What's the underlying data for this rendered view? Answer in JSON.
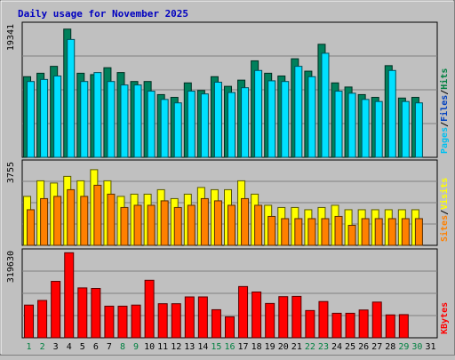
{
  "chart_data": {
    "type": "bar",
    "title": "Daily usage for November 2025",
    "categories": [
      "1",
      "2",
      "3",
      "4",
      "5",
      "6",
      "7",
      "8",
      "9",
      "10",
      "11",
      "12",
      "13",
      "14",
      "15",
      "16",
      "17",
      "18",
      "19",
      "20",
      "21",
      "22",
      "23",
      "24",
      "25",
      "26",
      "27",
      "28",
      "29",
      "30",
      "31"
    ],
    "weekend_days": [
      "1",
      "2",
      "8",
      "9",
      "15",
      "16",
      "22",
      "23",
      "29",
      "30"
    ],
    "panels": [
      {
        "id": "top",
        "max_label": "19341",
        "ymax": 19341,
        "side_labels": [
          {
            "text": "Pages",
            "color": "#00c0f0"
          },
          {
            "text": "Files",
            "color": "#0040c0"
          },
          {
            "text": "Hits",
            "color": "#008040"
          }
        ],
        "series": [
          {
            "name": "Hits",
            "color": "#00805c",
            "values": [
              11700,
              12200,
              13200,
              18600,
              12200,
              12000,
              13000,
              12300,
              11000,
              11000,
              9100,
              8700,
              10800,
              9700,
              11700,
              10300,
              11200,
              14000,
              12200,
              11800,
              14300,
              12500,
              16400,
              10800,
              10200,
              9100,
              8700,
              13300,
              8600,
              8700,
              null
            ]
          },
          {
            "name": "Files",
            "color": "#0000ff",
            "values": [
              null,
              null,
              null,
              null,
              null,
              null,
              null,
              null,
              null,
              null,
              null,
              null,
              null,
              null,
              null,
              null,
              null,
              null,
              null,
              null,
              null,
              null,
              null,
              null,
              null,
              null,
              null,
              null,
              null,
              null,
              null
            ]
          },
          {
            "name": "Pages",
            "color": "#00e0ff",
            "values": [
              11000,
              11300,
              11800,
              17100,
              11000,
              12300,
              11000,
              10500,
              10500,
              9600,
              8400,
              7900,
              9600,
              9200,
              10900,
              9400,
              10100,
              12600,
              11100,
              11000,
              13200,
              11700,
              15100,
              9600,
              9300,
              8400,
              8100,
              12600,
              8100,
              7900,
              null
            ]
          }
        ]
      },
      {
        "id": "middle",
        "max_label": "3755",
        "ymax": 3755,
        "side_labels": [
          {
            "text": "Sites",
            "color": "#ff8000"
          },
          {
            "text": "Visits",
            "color": "#ffff00"
          }
        ],
        "series": [
          {
            "name": "Visits",
            "color": "#ffff00",
            "values": [
              2200,
              2900,
              2800,
              3100,
              2900,
              3400,
              2900,
              2200,
              2300,
              2300,
              2500,
              2100,
              2300,
              2600,
              2500,
              2500,
              2900,
              2300,
              1800,
              1700,
              1700,
              1600,
              1700,
              1800,
              1600,
              1600,
              1600,
              1600,
              1600,
              1600,
              null
            ]
          },
          {
            "name": "Sites",
            "color": "#ff8000",
            "values": [
              1600,
              2100,
              2200,
              2500,
              2200,
              2700,
              2300,
              1700,
              1800,
              1800,
              2000,
              1700,
              1800,
              2100,
              2000,
              1800,
              2100,
              1800,
              1300,
              1200,
              1200,
              1200,
              1200,
              1300,
              900,
              1200,
              1200,
              1200,
              1200,
              1200,
              null
            ]
          }
        ]
      },
      {
        "id": "bottom",
        "max_label": "319630",
        "ymax": 319630,
        "side_labels": [
          {
            "text": "KBytes",
            "color": "#ff0000"
          }
        ],
        "series": [
          {
            "name": "KBytes",
            "color": "#ff0000",
            "values": [
              120000,
              137000,
              207000,
              312000,
              183000,
              181000,
              116000,
              116000,
              120000,
              211000,
              125000,
              125000,
              150000,
              150000,
              103000,
              77000,
              188000,
              168000,
              126000,
              151000,
              152000,
              100000,
              133000,
              90000,
              90000,
              102000,
              131000,
              84000,
              85000,
              null,
              null
            ]
          }
        ]
      }
    ]
  }
}
